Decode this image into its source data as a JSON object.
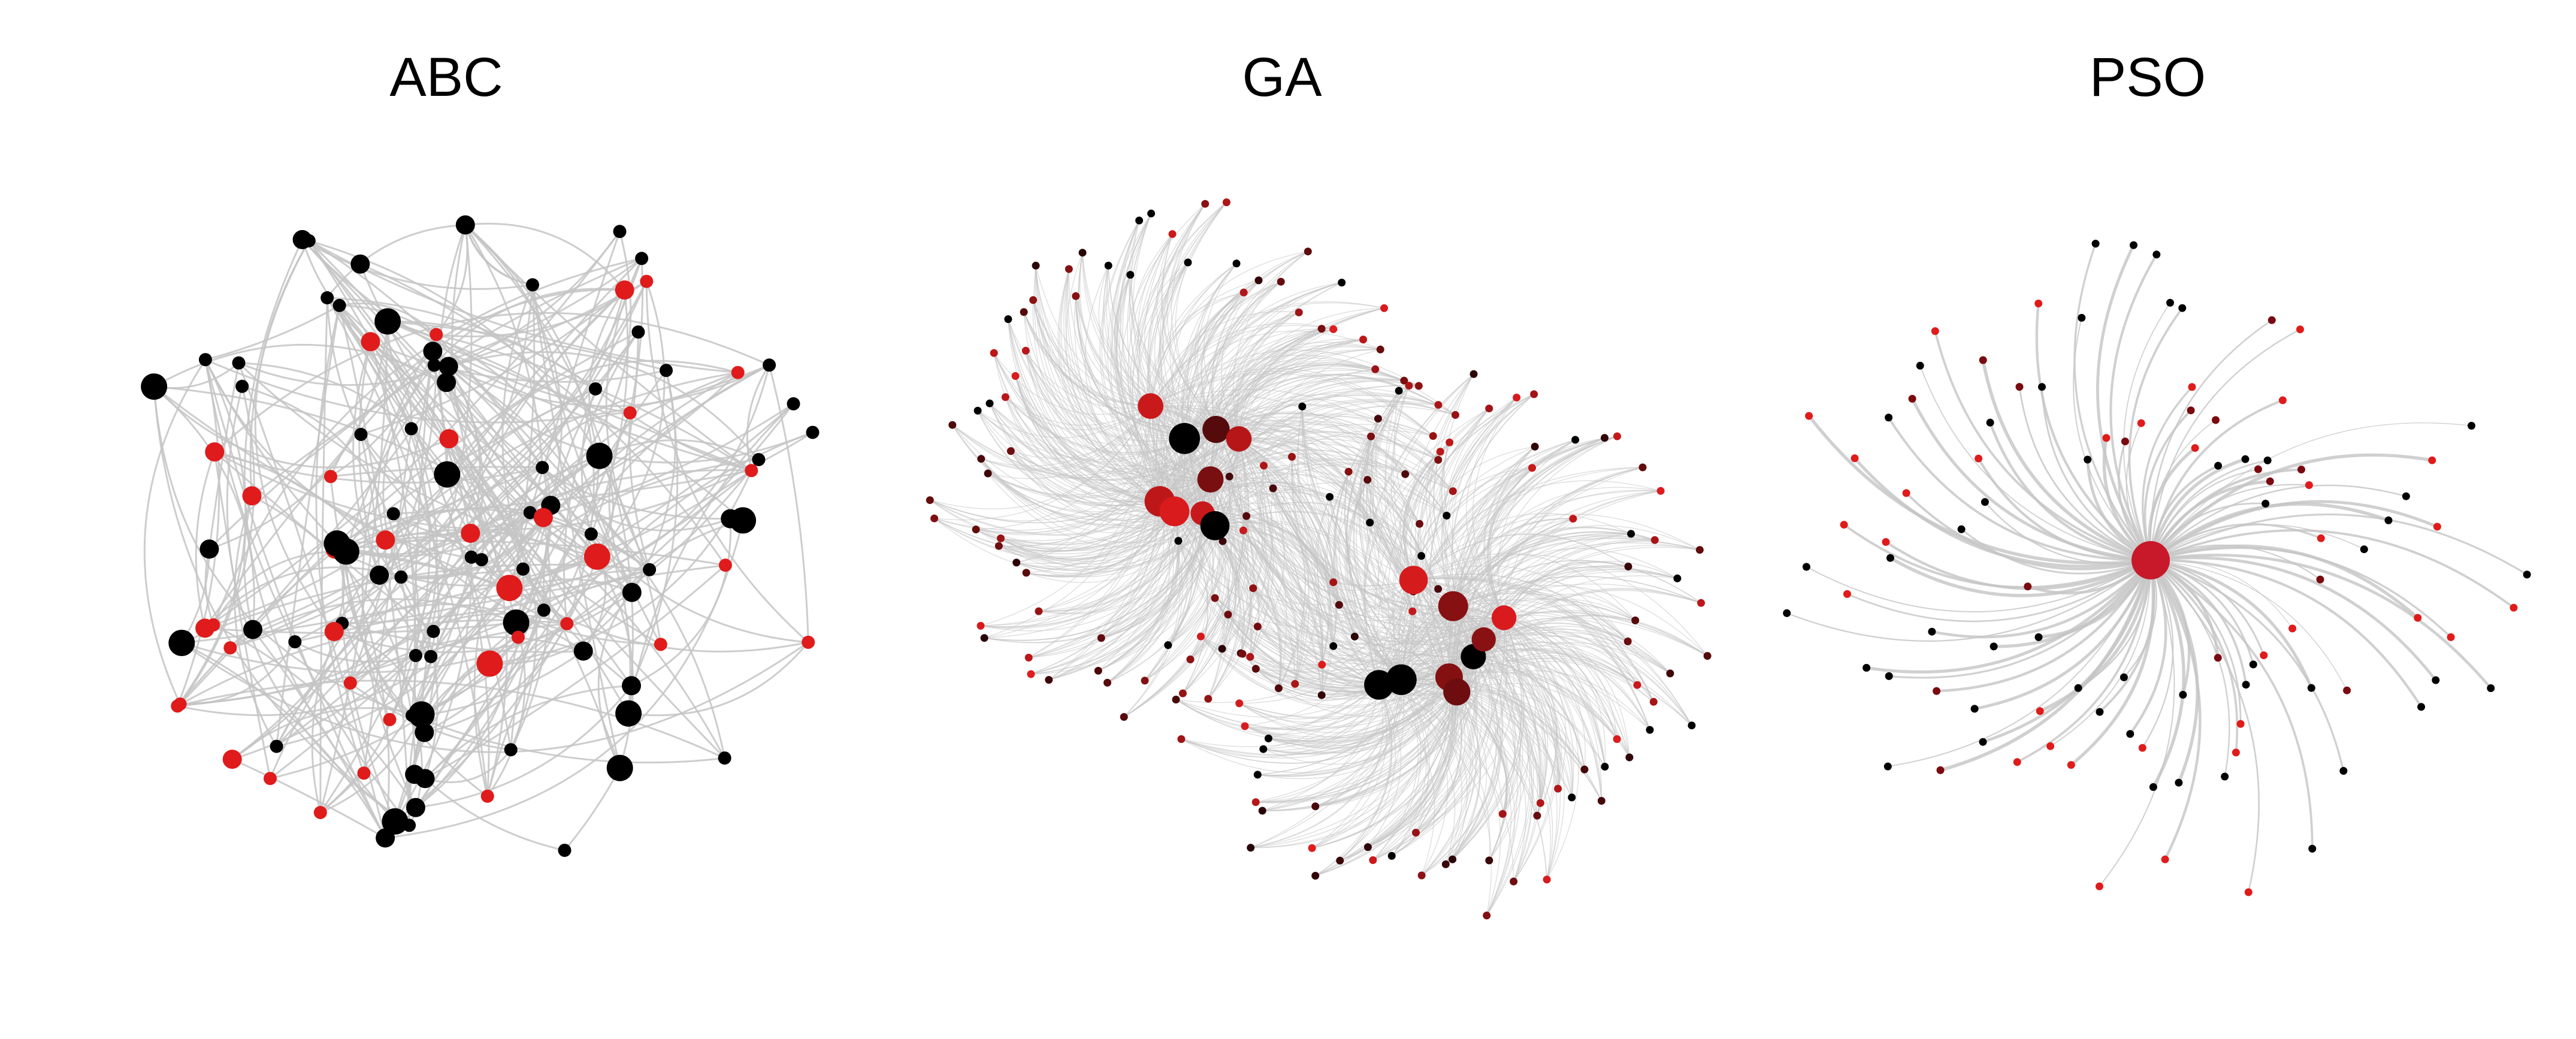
{
  "panels": [
    {
      "title": "ABC",
      "layout": "random-cluster",
      "node_count": 110,
      "edge_count": 340,
      "seed": 11
    },
    {
      "title": "GA",
      "layout": "two-hub-spirals",
      "node_count": 190,
      "edge_count": 1500,
      "seed": 23
    },
    {
      "title": "PSO",
      "layout": "single-hub-spiral",
      "node_count": 100,
      "edge_count": 100,
      "seed": 37
    }
  ],
  "colors": {
    "background": "#ffffff",
    "edge": "#c4c4c4",
    "node_black": "#000000",
    "node_red": "#e01b1b",
    "node_dark_red": "#7a0a0f",
    "hub": "#c8192a"
  }
}
